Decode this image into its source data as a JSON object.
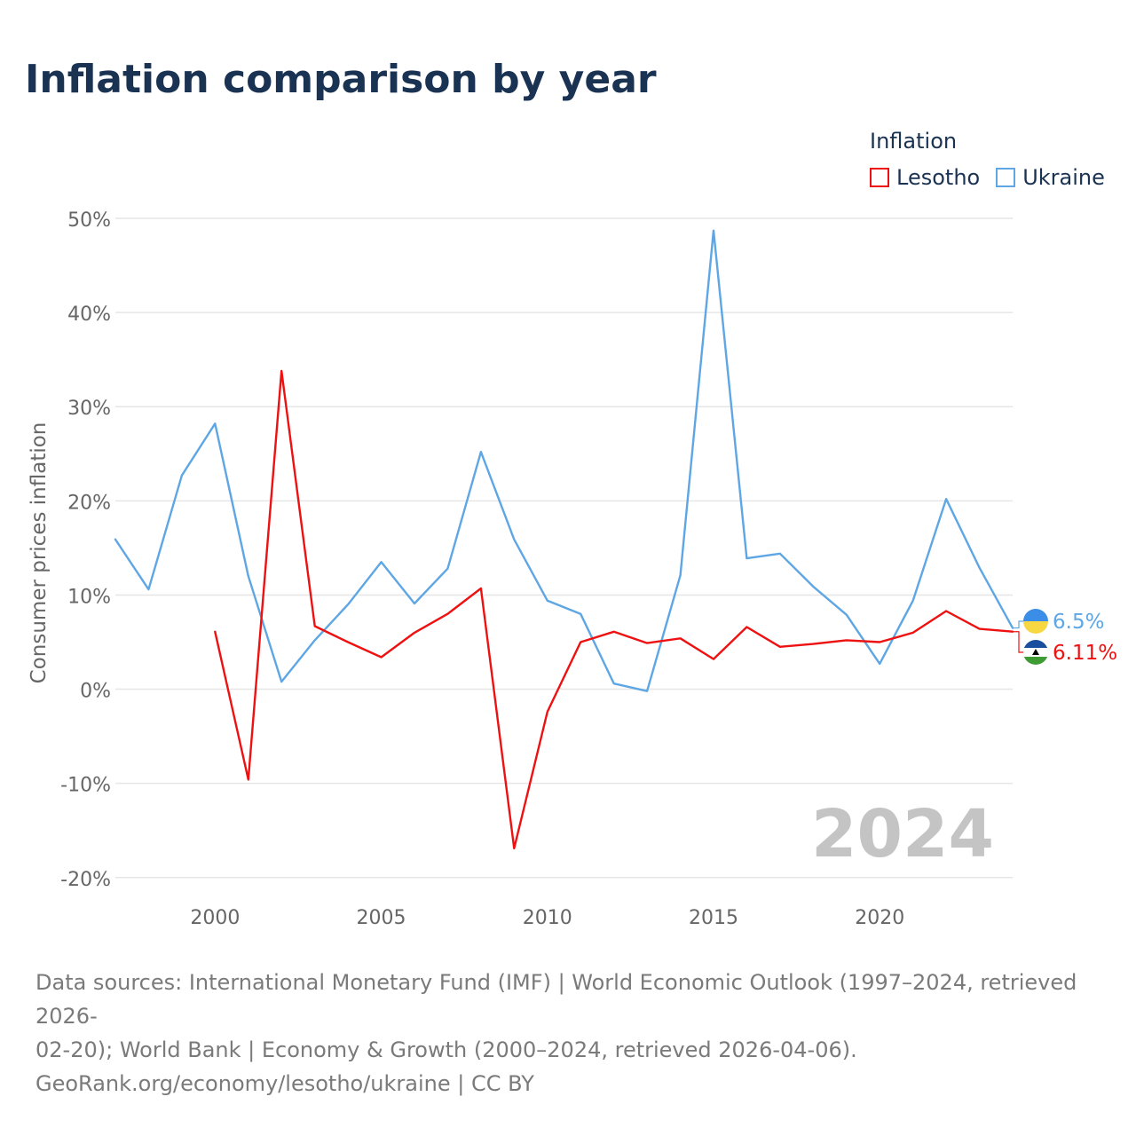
{
  "chart_data": {
    "type": "line",
    "title": "Inflation comparison by year",
    "legend_title": "Inflation",
    "ylabel": "Consumer prices inflation",
    "xlabel": "",
    "xlim": [
      1997,
      2024
    ],
    "ylim": [
      -22,
      50
    ],
    "x_ticks": [
      2000,
      2005,
      2010,
      2015,
      2020
    ],
    "y_ticks": [
      -20,
      -10,
      0,
      10,
      20,
      30,
      40,
      50
    ],
    "y_tick_labels": [
      "-20%",
      "-10%",
      "0%",
      "10%",
      "20%",
      "30%",
      "40%",
      "50%"
    ],
    "watermark_year": "2024",
    "series": [
      {
        "name": "Lesotho",
        "color": "#ee1111",
        "end_label": "6.11%",
        "points": [
          [
            2000,
            6.1
          ],
          [
            2001,
            -9.6
          ],
          [
            2002,
            33.8
          ],
          [
            2003,
            6.7
          ],
          [
            2004,
            5.0
          ],
          [
            2005,
            3.4
          ],
          [
            2006,
            6.0
          ],
          [
            2007,
            8.0
          ],
          [
            2008,
            10.7
          ],
          [
            2009,
            -16.9
          ],
          [
            2010,
            -2.4
          ],
          [
            2011,
            5.0
          ],
          [
            2012,
            6.1
          ],
          [
            2013,
            4.9
          ],
          [
            2014,
            5.4
          ],
          [
            2015,
            3.2
          ],
          [
            2016,
            6.6
          ],
          [
            2017,
            4.5
          ],
          [
            2018,
            4.8
          ],
          [
            2019,
            5.2
          ],
          [
            2020,
            5.0
          ],
          [
            2021,
            6.0
          ],
          [
            2022,
            8.3
          ],
          [
            2023,
            6.4
          ],
          [
            2024,
            6.11
          ]
        ]
      },
      {
        "name": "Ukraine",
        "color": "#5ea6e4",
        "end_label": "6.5%",
        "points": [
          [
            1997,
            15.9
          ],
          [
            1998,
            10.6
          ],
          [
            1999,
            22.7
          ],
          [
            2000,
            28.2
          ],
          [
            2001,
            12.0
          ],
          [
            2002,
            0.8
          ],
          [
            2003,
            5.2
          ],
          [
            2004,
            9.0
          ],
          [
            2005,
            13.5
          ],
          [
            2006,
            9.1
          ],
          [
            2007,
            12.8
          ],
          [
            2008,
            25.2
          ],
          [
            2009,
            15.9
          ],
          [
            2010,
            9.4
          ],
          [
            2011,
            8.0
          ],
          [
            2012,
            0.6
          ],
          [
            2013,
            -0.2
          ],
          [
            2014,
            12.1
          ],
          [
            2015,
            48.7
          ],
          [
            2016,
            13.9
          ],
          [
            2017,
            14.4
          ],
          [
            2018,
            10.9
          ],
          [
            2019,
            7.9
          ],
          [
            2020,
            2.7
          ],
          [
            2021,
            9.4
          ],
          [
            2022,
            20.2
          ],
          [
            2023,
            12.9
          ],
          [
            2024,
            6.5
          ]
        ]
      }
    ]
  },
  "footer": {
    "line1": "Data sources: International Monetary Fund (IMF) | World Economic Outlook (1997–2024, retrieved 2026-",
    "line2": "02-20); World Bank | Economy & Growth (2000–2024, retrieved 2026-04-06).",
    "line3": "GeoRank.org/economy/lesotho/ukraine | CC BY"
  },
  "colors": {
    "title": "#1b3353",
    "grid": "#e6e6e6",
    "axis_text": "#666666",
    "watermark": "#c4c4c4",
    "lesotho_flag_top": "#1a4f9e",
    "lesotho_flag_middle": "#ffffff",
    "lesotho_flag_bottom": "#3f9c35",
    "ukraine_flag_top": "#3b8ee8",
    "ukraine_flag_bottom": "#f7d842"
  }
}
